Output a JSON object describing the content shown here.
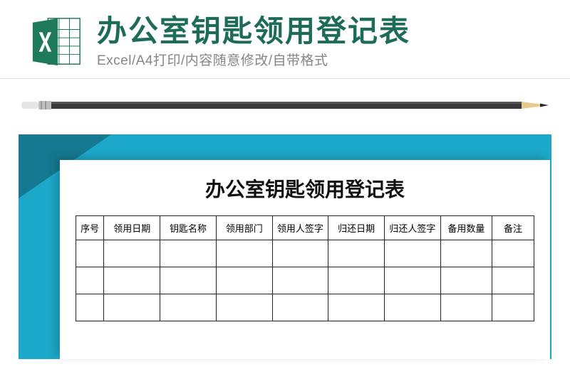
{
  "header": {
    "title": "办公室钥匙领用登记表",
    "subtitle": "Excel/A4打印/内容随意修改/自带格式",
    "title_color": "#1d6b58",
    "subtitle_color": "#868686",
    "icon_name": "excel-icon"
  },
  "preview": {
    "background_color": "#1ca9c9",
    "corner_color": "#157a91",
    "sheet_title": "办公室钥匙领用登记表",
    "table": {
      "columns": [
        "序号",
        "领用日期",
        "钥匙名称",
        "领用部门",
        "领用人签字",
        "归还日期",
        "归还人签字",
        "备用数量",
        "备注"
      ],
      "column_classes": [
        "col-seq",
        "col-std",
        "col-std",
        "col-std",
        "col-std",
        "col-std",
        "col-std",
        "col-sm",
        "col-note"
      ],
      "rows": [
        [
          "",
          "",
          "",
          "",
          "",
          "",
          "",
          "",
          ""
        ],
        [
          "",
          "",
          "",
          "",
          "",
          "",
          "",
          "",
          ""
        ],
        [
          "",
          "",
          "",
          "",
          "",
          "",
          "",
          "",
          ""
        ]
      ]
    }
  },
  "pencil": {
    "body_color": "#3a3a3a",
    "ferrule_color": "#c0c0c0",
    "eraser_color": "#e6e6e6",
    "wood_color": "#e8c98b",
    "tip_color": "#2b2b2b"
  }
}
